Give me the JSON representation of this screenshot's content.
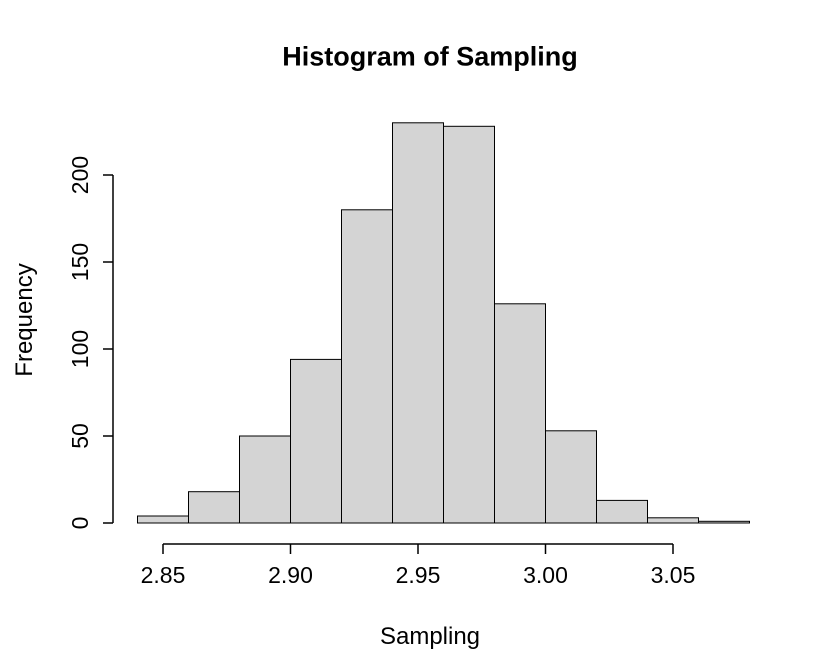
{
  "colors": {
    "background": "#FFFFFF",
    "bar_fill": "#D4D4D4",
    "bar_border": "#000000",
    "axis": "#000000",
    "text": "#000000"
  },
  "chart_data": {
    "type": "bar",
    "subtype": "histogram",
    "title": "Histogram of Sampling",
    "xlabel": "Sampling",
    "ylabel": "Frequency",
    "bin_edges": [
      2.84,
      2.86,
      2.88,
      2.9,
      2.92,
      2.94,
      2.96,
      2.98,
      3.0,
      3.02,
      3.04,
      3.06,
      3.08
    ],
    "counts": [
      4,
      18,
      50,
      94,
      180,
      230,
      228,
      126,
      53,
      13,
      3,
      1
    ],
    "total_count": 1000,
    "x_ticks": [
      {
        "value": 2.85,
        "label": "2.85"
      },
      {
        "value": 2.9,
        "label": "2.90"
      },
      {
        "value": 2.95,
        "label": "2.95"
      },
      {
        "value": 3.0,
        "label": "3.00"
      },
      {
        "value": 3.05,
        "label": "3.05"
      }
    ],
    "y_ticks": [
      {
        "value": 0,
        "label": "0"
      },
      {
        "value": 50,
        "label": "50"
      },
      {
        "value": 100,
        "label": "100"
      },
      {
        "value": 150,
        "label": "150"
      },
      {
        "value": 200,
        "label": "200"
      }
    ],
    "xlim": [
      2.84,
      3.08
    ],
    "ylim": [
      0,
      230
    ],
    "grid": false,
    "legend": false
  }
}
